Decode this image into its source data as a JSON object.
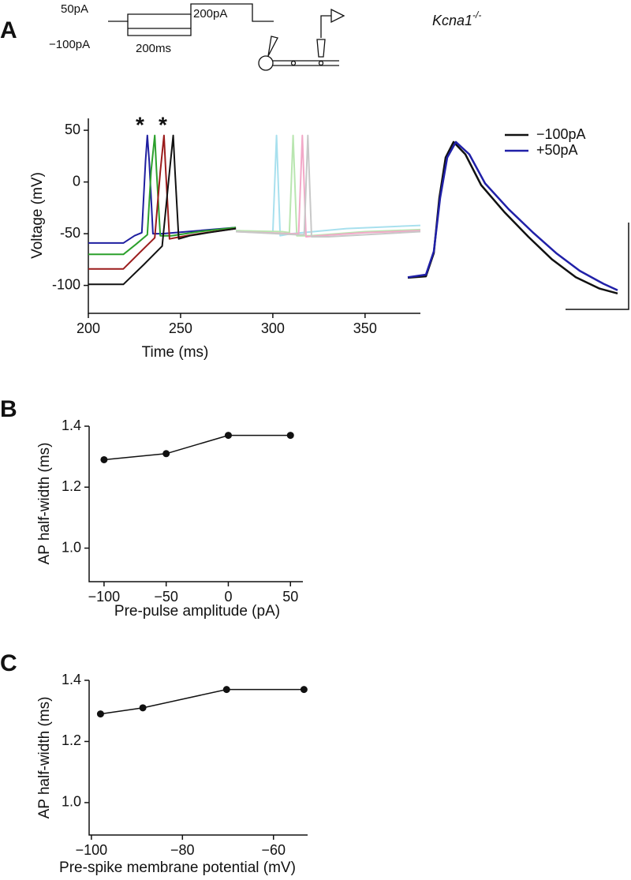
{
  "figure": {
    "panels": [
      "A",
      "B",
      "C"
    ],
    "genotype": "Kcna1",
    "genotype_superscript": "-/-"
  },
  "chart_data": [
    {
      "type": "line",
      "xlabel": "Time (ms)",
      "ylabel": "Voltage (mV)",
      "annotations": [
        "*",
        "*",
        "50pA",
        "−100pA",
        "200ms",
        "200pA"
      ],
      "xlim": [
        200,
        380
      ],
      "ylim": [
        -127,
        61.5
      ],
      "xticks": [
        200,
        250,
        300,
        350
      ],
      "yticks": [
        50,
        0,
        -50,
        -100
      ],
      "series": [
        {
          "color": "#1f1fa0",
          "x": [
            200,
            219,
            225,
            229,
            231,
            232,
            233,
            235,
            240,
            260,
            280
          ],
          "values": [
            -59,
            -59,
            -52,
            -49,
            20,
            45,
            20,
            -50,
            -50,
            -47,
            -44
          ]
        },
        {
          "color": "#2ca02c",
          "x": [
            200,
            219,
            226,
            232,
            234,
            236,
            237,
            239,
            245,
            260,
            280
          ],
          "values": [
            -70,
            -70,
            -60,
            -51,
            10,
            45,
            10,
            -52,
            -52,
            -48,
            -44
          ]
        },
        {
          "color": "#9b1c1c",
          "x": [
            200,
            219,
            228,
            236,
            239,
            241,
            242,
            244,
            250,
            260,
            280
          ],
          "values": [
            -84,
            -84,
            -68,
            -54,
            10,
            45,
            10,
            -55,
            -53,
            -50,
            -45
          ]
        },
        {
          "color": "#111111",
          "x": [
            200,
            219,
            230,
            240,
            244,
            246,
            247,
            249,
            255,
            265,
            280
          ],
          "values": [
            -99,
            -99,
            -80,
            -62,
            10,
            45,
            10,
            -55,
            -52,
            -49,
            -45
          ]
        },
        {
          "color": "#a8e0ee",
          "x": [
            280,
            295,
            300,
            302,
            304,
            310,
            340,
            380
          ],
          "values": [
            -47,
            -48,
            -49,
            45,
            -52,
            -50,
            -45,
            -42
          ]
        },
        {
          "color": "#b9e6b0",
          "x": [
            280,
            305,
            309,
            311,
            313,
            320,
            350,
            380
          ],
          "values": [
            -47,
            -48,
            -49,
            45,
            -52,
            -52,
            -48,
            -46
          ]
        },
        {
          "color": "#f2a9c8",
          "x": [
            280,
            310,
            314,
            316,
            318,
            325,
            350,
            380
          ],
          "values": [
            -48,
            -50,
            -50,
            45,
            -53,
            -52,
            -49,
            -47
          ]
        },
        {
          "color": "#c8c8c8",
          "x": [
            280,
            313,
            317,
            319,
            321,
            330,
            360,
            380
          ],
          "values": [
            -48,
            -51,
            -51,
            45,
            -53,
            -53,
            -50,
            -48
          ]
        }
      ]
    },
    {
      "type": "line",
      "xlim": [
        0,
        266
      ],
      "ylim": [
        0,
        100
      ],
      "series": [
        {
          "name": "−100pA",
          "color": "#111111",
          "x": [
            0,
            23,
            33,
            40,
            48,
            58,
            73,
            93,
            123,
            153,
            183,
            213,
            243,
            266
          ],
          "values": [
            13.7,
            14.6,
            29,
            63,
            88,
            97.6,
            90,
            71,
            54,
            39,
            25,
            14,
            7,
            4
          ]
        },
        {
          "name": "+50pA",
          "color": "#2020a8",
          "x": [
            0,
            23,
            33,
            41,
            50,
            61,
            78,
            98,
            128,
            158,
            188,
            218,
            248,
            266
          ],
          "values": [
            14,
            15.6,
            30,
            63,
            88,
            97.6,
            90,
            72,
            56,
            42,
            29,
            18,
            10,
            6
          ]
        }
      ]
    },
    {
      "type": "line",
      "xlabel": "Pre-pulse amplitude (pA)",
      "ylabel": "AP half-width (ms)",
      "xlim": [
        -112,
        60
      ],
      "ylim": [
        0.89,
        1.4
      ],
      "xticks": [
        {
          "value": -100,
          "label": "−100"
        },
        {
          "value": -50,
          "label": "−50"
        },
        0,
        50
      ],
      "yticks": [
        {
          "value": 1,
          "label": "1.0"
        },
        1.2,
        1.4
      ],
      "series": [
        {
          "color": "#111111",
          "x": [
            -100,
            -50,
            0,
            50
          ],
          "values": [
            1.29,
            1.31,
            1.37,
            1.37
          ]
        }
      ]
    },
    {
      "type": "line",
      "xlabel": "Pre-spike membrane potential (mV)",
      "ylabel": "AP half-width (ms)",
      "xlim": [
        -100.5,
        -52.5
      ],
      "ylim": [
        0.894,
        1.4
      ],
      "xticks": [
        {
          "value": -100,
          "label": "−100"
        },
        {
          "value": -80,
          "label": "−80"
        },
        {
          "value": -60,
          "label": "−60"
        }
      ],
      "yticks": [
        {
          "value": 1,
          "label": "1.0"
        },
        1.2,
        1.4
      ],
      "series": [
        {
          "color": "#111111",
          "x": [
            -98,
            -88.7,
            -70.3,
            -53.3
          ],
          "values": [
            1.29,
            1.31,
            1.37,
            1.37
          ]
        }
      ]
    }
  ]
}
